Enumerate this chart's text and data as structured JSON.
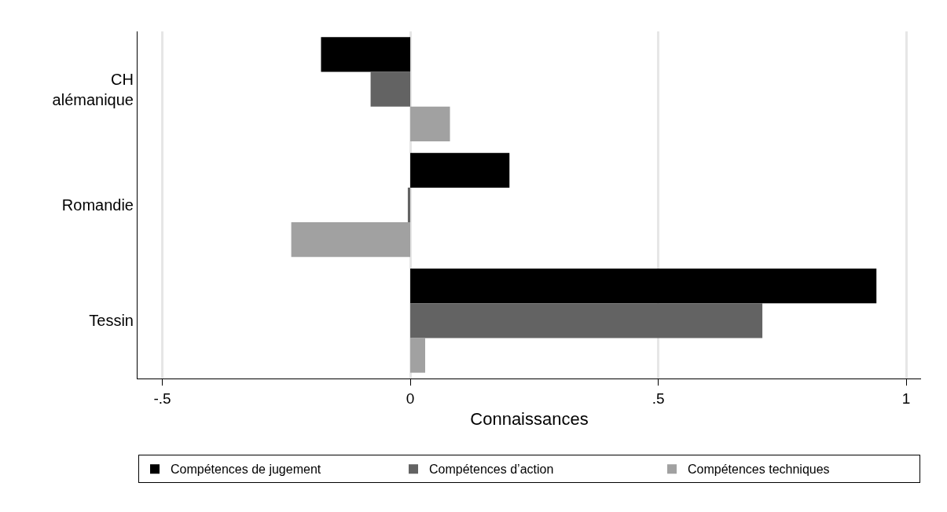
{
  "chart_data": {
    "type": "bar",
    "orientation": "horizontal",
    "xlabel": "Connaissances",
    "categories": [
      "CH\nalémanique",
      "Romandie",
      "Tessin"
    ],
    "series": [
      {
        "name": "Compétences de jugement",
        "color": "#000000",
        "values": [
          -0.18,
          0.2,
          0.94
        ]
      },
      {
        "name": "Compétences d’action",
        "color": "#636363",
        "values": [
          -0.08,
          -0.005,
          0.71
        ]
      },
      {
        "name": "Compétences techniques",
        "color": "#a1a1a1",
        "values": [
          0.08,
          -0.24,
          0.03
        ]
      }
    ],
    "xlim": [
      -0.55,
      1.03
    ],
    "xticks": [
      {
        "value": -0.5,
        "label": "-.5"
      },
      0,
      {
        "value": 0.5,
        "label": ".5"
      },
      1
    ],
    "grid": "x",
    "legend": "bottom"
  }
}
